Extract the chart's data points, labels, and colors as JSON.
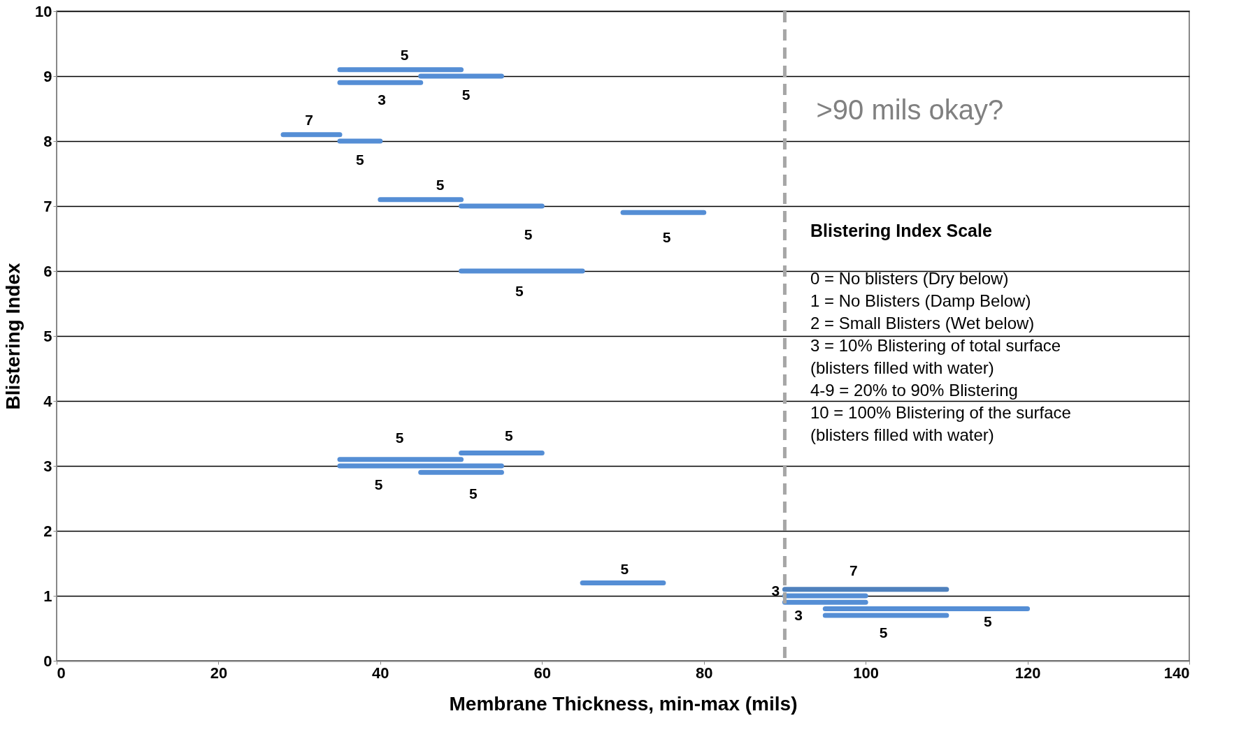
{
  "chart_data": {
    "type": "line",
    "xlabel": "Membrane Thickness, min-max (mils)",
    "ylabel": "Blistering Index",
    "xlim": [
      0,
      140
    ],
    "xticks": [
      0,
      20,
      40,
      60,
      80,
      100,
      120,
      140
    ],
    "ylim": [
      0,
      10
    ],
    "yticks": [
      0,
      1,
      2,
      3,
      4,
      5,
      6,
      7,
      8,
      9,
      10
    ],
    "grid": "y",
    "series": [
      {
        "color": "#558ed5",
        "x": [
          35,
          50
        ],
        "values": [
          9.1,
          9.1
        ]
      },
      {
        "color": "#558ed5",
        "x": [
          45,
          55
        ],
        "values": [
          9.0,
          9.0
        ]
      },
      {
        "color": "#558ed5",
        "x": [
          35,
          45
        ],
        "values": [
          8.9,
          8.9
        ]
      },
      {
        "color": "#558ed5",
        "x": [
          28,
          35
        ],
        "values": [
          8.1,
          8.1
        ]
      },
      {
        "color": "#558ed5",
        "x": [
          35,
          40
        ],
        "values": [
          8.0,
          8.0
        ]
      },
      {
        "color": "#558ed5",
        "x": [
          40,
          50
        ],
        "values": [
          7.1,
          7.1
        ]
      },
      {
        "color": "#558ed5",
        "x": [
          50,
          60
        ],
        "values": [
          7.0,
          7.0
        ]
      },
      {
        "color": "#558ed5",
        "x": [
          70,
          80
        ],
        "values": [
          6.9,
          6.9
        ]
      },
      {
        "color": "#558ed5",
        "x": [
          50,
          65
        ],
        "values": [
          6.0,
          6.0
        ]
      },
      {
        "color": "#558ed5",
        "x": [
          50,
          60
        ],
        "values": [
          3.2,
          3.2
        ]
      },
      {
        "color": "#558ed5",
        "x": [
          35,
          50
        ],
        "values": [
          3.1,
          3.1
        ]
      },
      {
        "color": "#558ed5",
        "x": [
          35,
          55
        ],
        "values": [
          3.0,
          3.0
        ]
      },
      {
        "color": "#558ed5",
        "x": [
          45,
          55
        ],
        "values": [
          2.9,
          2.9
        ]
      },
      {
        "color": "#558ed5",
        "x": [
          65,
          75
        ],
        "values": [
          1.2,
          1.2
        ]
      },
      {
        "color": "#4f81bd",
        "x": [
          90,
          110
        ],
        "values": [
          1.1,
          1.1
        ]
      },
      {
        "color": "#558ed5",
        "x": [
          90,
          100
        ],
        "values": [
          1.0,
          1.0
        ]
      },
      {
        "color": "#558ed5",
        "x": [
          90,
          100
        ],
        "values": [
          0.9,
          0.9
        ]
      },
      {
        "color": "#558ed5",
        "x": [
          95,
          120
        ],
        "values": [
          0.8,
          0.8
        ]
      },
      {
        "color": "#558ed5",
        "x": [
          95,
          110
        ],
        "values": [
          0.7,
          0.7
        ]
      }
    ],
    "ref_lines": [
      {
        "axis": "x",
        "value": 90,
        "color": "#a6a6a6",
        "line_style": "dashed",
        "label": ">90 mils okay?"
      }
    ],
    "annotations": [
      {
        "text": "5",
        "x": 43,
        "y": 9.1
      },
      {
        "text": "3",
        "x": 40.2,
        "y": 8.9
      },
      {
        "text": "5",
        "x": 50.6,
        "y": 9.0
      },
      {
        "text": "7",
        "x": 31.2,
        "y": 8.1
      },
      {
        "text": "5",
        "x": 37.5,
        "y": 8.0
      },
      {
        "text": "5",
        "x": 47.4,
        "y": 7.1
      },
      {
        "text": "5",
        "x": 58.3,
        "y": 7.0
      },
      {
        "text": "5",
        "x": 75.4,
        "y": 6.9
      },
      {
        "text": "5",
        "x": 57.2,
        "y": 6.0
      },
      {
        "text": "5",
        "x": 42.4,
        "y": 3.1
      },
      {
        "text": "5",
        "x": 55.9,
        "y": 3.2
      },
      {
        "text": "5",
        "x": 39.8,
        "y": 3.0
      },
      {
        "text": "5",
        "x": 51.5,
        "y": 2.9
      },
      {
        "text": "5",
        "x": 70.2,
        "y": 1.2
      },
      {
        "text": "7",
        "x": 98.5,
        "y": 1.1
      },
      {
        "text": "3",
        "x": 90,
        "y": 1.1
      },
      {
        "text": "3",
        "x": 91.7,
        "y": 0.9
      },
      {
        "text": "5",
        "x": 102.2,
        "y": 0.7
      },
      {
        "text": "5",
        "x": 115.1,
        "y": 0.8
      },
      "Blistering  Index Scale",
      "0      = No blisters (Dry below)",
      "1      = No Blisters (Damp Below)",
      "2      = Small Blisters (Wet below)",
      "3      = 10% Blistering of total surface",
      "           (blisters filled with water)",
      "4-9  = 20% to 90% Blistering",
      "10    = 100% Blistering of the surface",
      "           (blisters filled with water)"
    ]
  }
}
